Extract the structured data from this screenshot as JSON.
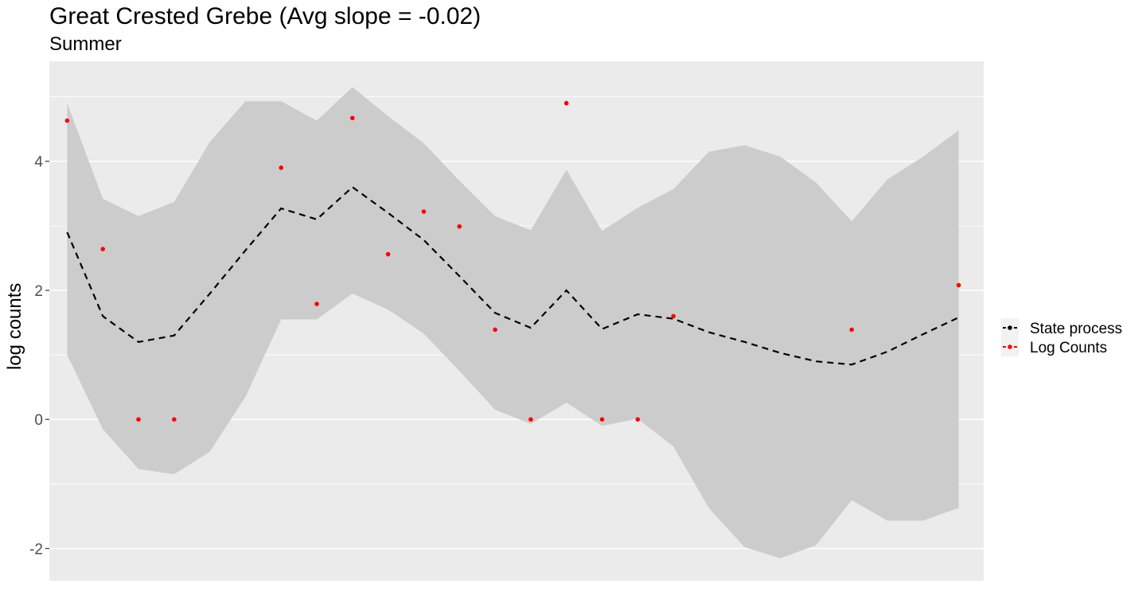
{
  "chart_data": {
    "type": "line",
    "title": "Great Crested Grebe (Avg slope = -0.02)",
    "subtitle": "Summer",
    "xlabel": "",
    "ylabel": "log counts",
    "ylim": [
      -2.5,
      5.55
    ],
    "xlim": [
      0.5,
      26.7
    ],
    "y_ticks": [
      -2,
      0,
      2,
      4
    ],
    "grid": true,
    "legend_position": "right",
    "x": [
      1,
      2,
      3,
      4,
      5,
      6,
      7,
      8,
      9,
      10,
      11,
      12,
      13,
      14,
      15,
      16,
      17,
      18,
      19,
      20,
      21,
      22,
      23,
      24,
      25,
      26
    ],
    "series": [
      {
        "name": "State process",
        "style": "dashed-line",
        "color": "#000000",
        "values": [
          2.9,
          1.6,
          1.2,
          1.3,
          1.95,
          2.62,
          3.27,
          3.1,
          3.6,
          3.2,
          2.78,
          2.22,
          1.65,
          1.42,
          2.0,
          1.4,
          1.63,
          1.56,
          1.35,
          1.2,
          1.03,
          0.9,
          0.85,
          1.05,
          1.32,
          1.58
        ],
        "lower": [
          1.0,
          -0.15,
          -0.77,
          -0.85,
          -0.5,
          0.35,
          1.55,
          1.55,
          1.95,
          1.7,
          1.33,
          0.75,
          0.15,
          -0.07,
          0.26,
          -0.1,
          0.01,
          -0.42,
          -1.38,
          -1.98,
          -2.15,
          -1.95,
          -1.25,
          -1.57,
          -1.57,
          -1.37
        ],
        "upper": [
          4.9,
          3.42,
          3.15,
          3.37,
          4.3,
          4.93,
          4.93,
          4.63,
          5.15,
          4.7,
          4.28,
          3.7,
          3.15,
          2.93,
          3.87,
          2.92,
          3.28,
          3.57,
          4.15,
          4.25,
          4.07,
          3.67,
          3.07,
          3.72,
          4.07,
          4.48
        ]
      },
      {
        "name": "Log Counts",
        "style": "points",
        "color": "#ff0000",
        "points": [
          [
            1,
            4.63
          ],
          [
            2,
            2.64
          ],
          [
            3,
            0.0
          ],
          [
            4,
            0.0
          ],
          [
            7,
            3.9
          ],
          [
            8,
            1.79
          ],
          [
            9,
            4.67
          ],
          [
            10,
            2.56
          ],
          [
            11,
            3.22
          ],
          [
            12,
            2.99
          ],
          [
            13,
            1.39
          ],
          [
            14,
            0.0
          ],
          [
            15,
            4.9
          ],
          [
            16,
            0.0
          ],
          [
            17,
            0.0
          ],
          [
            18,
            1.6
          ],
          [
            23,
            1.39
          ],
          [
            26,
            2.08
          ]
        ]
      }
    ],
    "band_color": "#cccccc",
    "panel_color": "#ebebeb"
  }
}
